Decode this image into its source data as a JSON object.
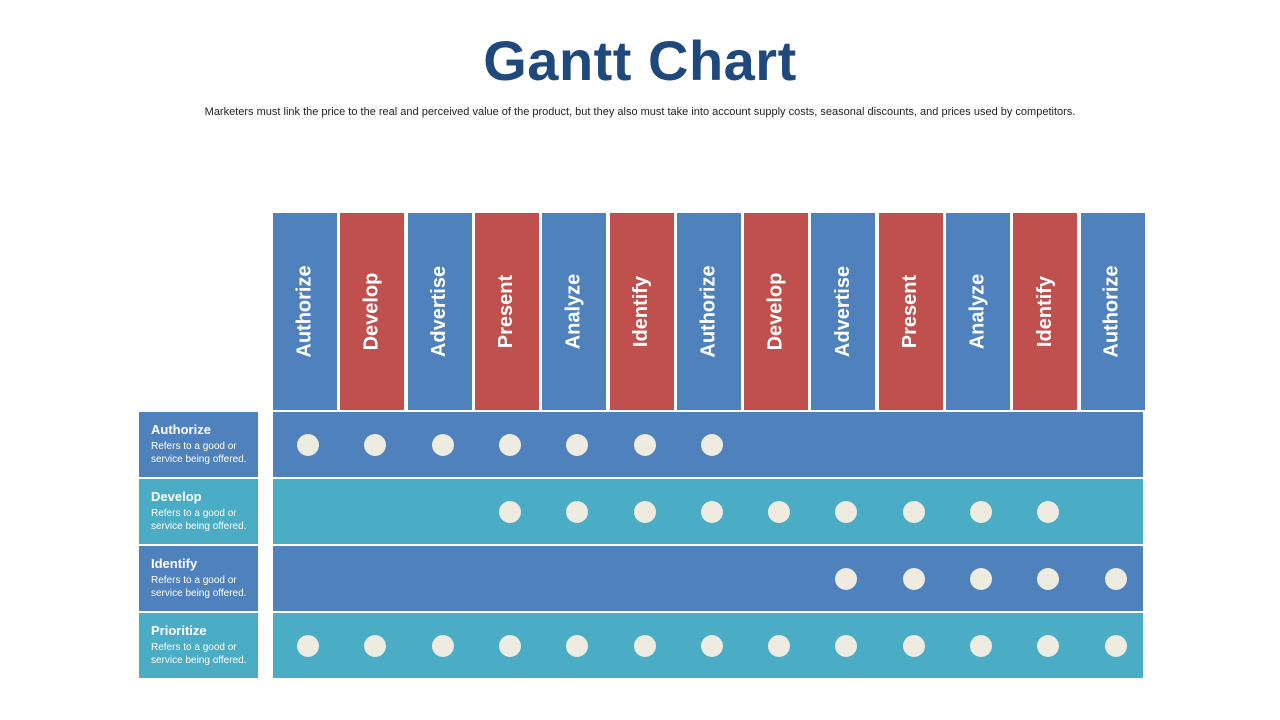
{
  "title": "Gantt Chart",
  "subtitle": "Marketers must link the price to the real and perceived value of the product, but they also must take into account supply costs, seasonal discounts, and prices used by competitors.",
  "colors": {
    "title": "#1f497d",
    "blue": "#4f81bd",
    "red": "#c0504d",
    "teal": "#4bacc6",
    "dot": "#eeece1"
  },
  "columns": [
    {
      "label": "Authorize",
      "color": "blue"
    },
    {
      "label": "Develop",
      "color": "red"
    },
    {
      "label": "Advertise",
      "color": "blue"
    },
    {
      "label": "Present",
      "color": "red"
    },
    {
      "label": "Analyze",
      "color": "blue"
    },
    {
      "label": "Identify",
      "color": "red"
    },
    {
      "label": "Authorize",
      "color": "blue"
    },
    {
      "label": "Develop",
      "color": "red"
    },
    {
      "label": "Advertise",
      "color": "blue"
    },
    {
      "label": "Present",
      "color": "red"
    },
    {
      "label": "Analyze",
      "color": "blue"
    },
    {
      "label": "Identify",
      "color": "red"
    },
    {
      "label": "Authorize",
      "color": "blue"
    }
  ],
  "rows": [
    {
      "label": "Authorize",
      "description": "Refers to a good or service being offered.",
      "color": "blue",
      "active": [
        1,
        2,
        3,
        4,
        5,
        6,
        7
      ]
    },
    {
      "label": "Develop",
      "description": "Refers to a good or service being offered.",
      "color": "teal",
      "active": [
        4,
        5,
        6,
        7,
        8,
        9,
        10,
        11,
        12
      ]
    },
    {
      "label": "Identify",
      "description": "Refers to a good or service being offered.",
      "color": "blue",
      "active": [
        9,
        10,
        11,
        12,
        13
      ]
    },
    {
      "label": "Prioritize",
      "description": "Refers to a good or service being offered.",
      "color": "teal",
      "active": [
        1,
        2,
        3,
        4,
        5,
        6,
        7,
        8,
        9,
        10,
        11,
        12,
        13
      ]
    }
  ]
}
